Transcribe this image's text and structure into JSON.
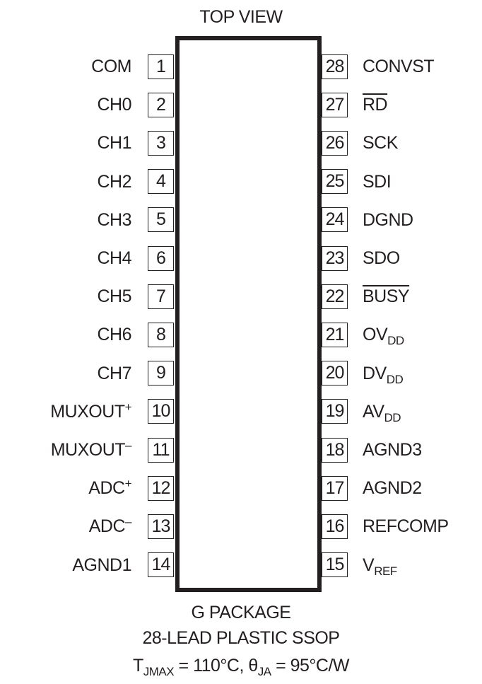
{
  "title": "TOP VIEW",
  "left_pins": [
    {
      "num": "1",
      "name": "COM"
    },
    {
      "num": "2",
      "name": "CH0"
    },
    {
      "num": "3",
      "name": "CH1"
    },
    {
      "num": "4",
      "name": "CH2"
    },
    {
      "num": "5",
      "name": "CH3"
    },
    {
      "num": "6",
      "name": "CH4"
    },
    {
      "num": "7",
      "name": "CH5"
    },
    {
      "num": "8",
      "name": "CH6"
    },
    {
      "num": "9",
      "name": "CH7"
    },
    {
      "num": "10",
      "name": "MUXOUT",
      "sup": "+"
    },
    {
      "num": "11",
      "name": "MUXOUT",
      "sup": "–"
    },
    {
      "num": "12",
      "name": "ADC",
      "sup": "+"
    },
    {
      "num": "13",
      "name": "ADC",
      "sup": "–"
    },
    {
      "num": "14",
      "name": "AGND1"
    }
  ],
  "right_pins": [
    {
      "num": "28",
      "name": "CONVST"
    },
    {
      "num": "27",
      "name": "RD",
      "overline": true
    },
    {
      "num": "26",
      "name": "SCK"
    },
    {
      "num": "25",
      "name": "SDI"
    },
    {
      "num": "24",
      "name": "DGND"
    },
    {
      "num": "23",
      "name": "SDO"
    },
    {
      "num": "22",
      "name": "BUSY",
      "overline": true
    },
    {
      "num": "21",
      "name": "OV",
      "sub": "DD"
    },
    {
      "num": "20",
      "name": "DV",
      "sub": "DD"
    },
    {
      "num": "19",
      "name": "AV",
      "sub": "DD"
    },
    {
      "num": "18",
      "name": "AGND3"
    },
    {
      "num": "17",
      "name": "AGND2"
    },
    {
      "num": "16",
      "name": "REFCOMP"
    },
    {
      "num": "15",
      "name": "V",
      "sub": "REF"
    }
  ],
  "footer": {
    "package": "G PACKAGE",
    "lead": "28-LEAD PLASTIC SSOP",
    "thermal": {
      "t": "T",
      "t_sub": "JMAX",
      "t_val": " = 110°C, θ",
      "theta_sub": "JA",
      "theta_val": " = 95°C/W"
    }
  }
}
